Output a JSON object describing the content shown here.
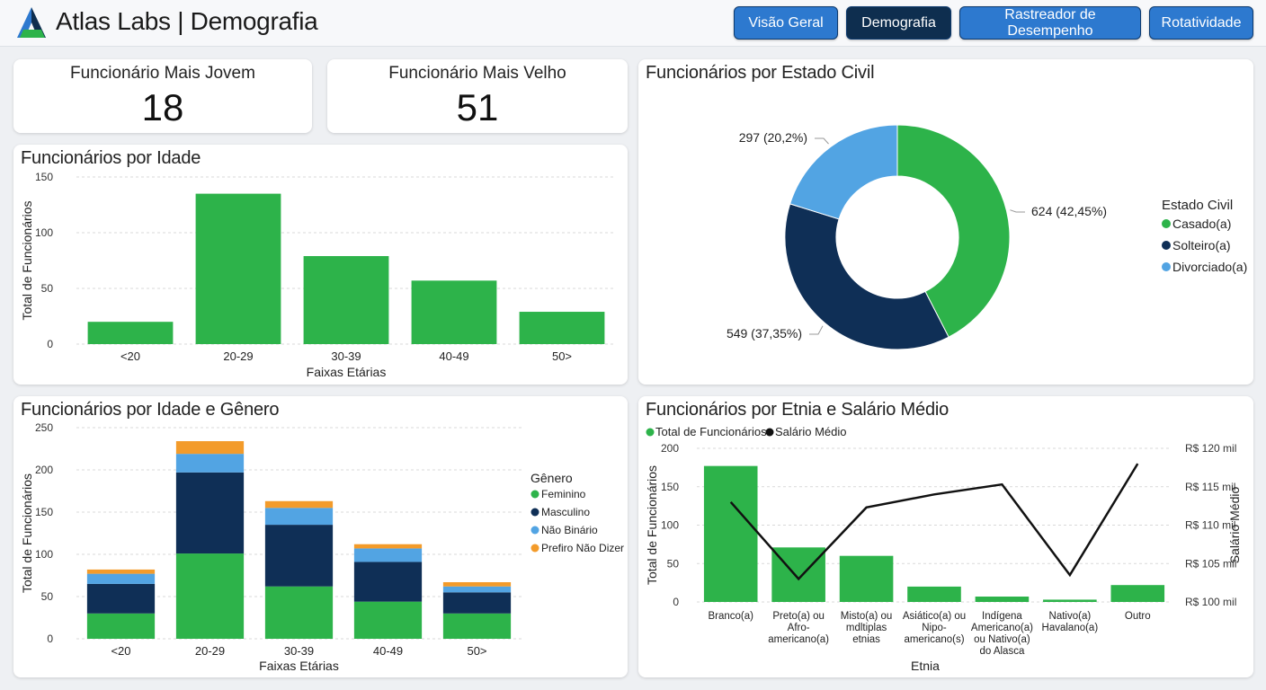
{
  "header": {
    "title": "Atlas Labs | Demografia",
    "nav": [
      {
        "label": "Visão Geral",
        "active": false
      },
      {
        "label": "Demografia",
        "active": true
      },
      {
        "label": "Rastreador de Desempenho",
        "active": false
      },
      {
        "label": "Rotatividade",
        "active": false
      }
    ]
  },
  "kpis": {
    "youngest": {
      "label": "Funcionário Mais Jovem",
      "value": "18"
    },
    "oldest": {
      "label": "Funcionário Mais Velho",
      "value": "51"
    }
  },
  "colors": {
    "green": "#2db34a",
    "navy": "#0f2f56",
    "lightblue": "#52a4e3",
    "orange": "#f39b2a",
    "line": "#111111"
  },
  "chart_data": [
    {
      "id": "age",
      "type": "bar",
      "title": "Funcionários por Idade",
      "xlabel": "Faixas Etárias",
      "ylabel": "Total de Funcionários",
      "ylim": [
        0,
        150
      ],
      "yticks": [
        0,
        50,
        100,
        150
      ],
      "grid": true,
      "categories": [
        "<20",
        "20-29",
        "30-39",
        "40-49",
        "50>"
      ],
      "values": [
        20,
        135,
        79,
        57,
        29
      ]
    },
    {
      "id": "marital",
      "type": "pie",
      "title": "Funcionários por Estado Civil",
      "legend_title": "Estado Civil",
      "legend_position": "right",
      "slices": [
        {
          "name": "Casado(a)",
          "value": 624,
          "label": "624 (42,45%)",
          "color": "#2db34a"
        },
        {
          "name": "Solteiro(a)",
          "value": 549,
          "label": "549 (37,35%)",
          "color": "#0f2f56"
        },
        {
          "name": "Divorciado(a)",
          "value": 297,
          "label": "297 (20,2%)",
          "color": "#52a4e3"
        }
      ]
    },
    {
      "id": "age_gender",
      "type": "bar",
      "stacked": true,
      "title": "Funcionários por Idade e Gênero",
      "xlabel": "Faixas Etárias",
      "ylabel": "Total de Funcionários",
      "ylim": [
        0,
        250
      ],
      "yticks": [
        0,
        50,
        100,
        150,
        200,
        250
      ],
      "grid": true,
      "legend_title": "Gênero",
      "legend_position": "right",
      "categories": [
        "<20",
        "20-29",
        "30-39",
        "40-49",
        "50>"
      ],
      "series": [
        {
          "name": "Feminino",
          "color": "#2db34a",
          "values": [
            30,
            101,
            62,
            44,
            30
          ]
        },
        {
          "name": "Masculino",
          "color": "#0f2f56",
          "values": [
            35,
            96,
            73,
            47,
            25
          ]
        },
        {
          "name": "Não Binário",
          "color": "#52a4e3",
          "values": [
            12,
            22,
            20,
            16,
            7
          ]
        },
        {
          "name": "Prefiro Não Dizer",
          "color": "#f39b2a",
          "values": [
            5,
            15,
            8,
            5,
            5
          ]
        }
      ]
    },
    {
      "id": "ethnicity",
      "type": "bar",
      "title": "Funcionários por Etnia e Salário Médio",
      "xlabel": "Etnia",
      "ylabel": "Total de Funcionários",
      "y2label": "Salário Médio",
      "ylim": [
        0,
        200
      ],
      "yticks": [
        0,
        50,
        100,
        150,
        200
      ],
      "y2lim": [
        100,
        120
      ],
      "y2ticks": [
        {
          "value": 100,
          "label": "R$ 100 mil"
        },
        {
          "value": 105,
          "label": "R$ 105 mil"
        },
        {
          "value": 110,
          "label": "R$ 110 mil"
        },
        {
          "value": 115,
          "label": "R$ 115 mil"
        },
        {
          "value": 120,
          "label": "R$ 120 mil"
        }
      ],
      "grid": true,
      "legend_position": "top-left",
      "categories": [
        [
          "Branco(a)"
        ],
        [
          "Preto(a) ou",
          "Afro-",
          "americano(a)"
        ],
        [
          "Misto(a) ou",
          "mdltiplas",
          "etnias"
        ],
        [
          "Asiático(a) ou",
          "Nipo-",
          "americano(s)"
        ],
        [
          "Indígena",
          "Americano(a)",
          "ou Nativo(a)",
          "do Alasca"
        ],
        [
          "Nativo(a)",
          "Havalano(a)"
        ],
        [
          "Outro"
        ]
      ],
      "series": [
        {
          "name": "Total de Funcionários",
          "kind": "bar",
          "color": "#2db34a",
          "values": [
            177,
            71,
            60,
            20,
            7,
            3,
            22
          ]
        },
        {
          "name": "Salário Médio",
          "kind": "line",
          "color": "#111111",
          "values": [
            113,
            103,
            112.3,
            114,
            115.3,
            103.5,
            118
          ]
        }
      ]
    }
  ]
}
